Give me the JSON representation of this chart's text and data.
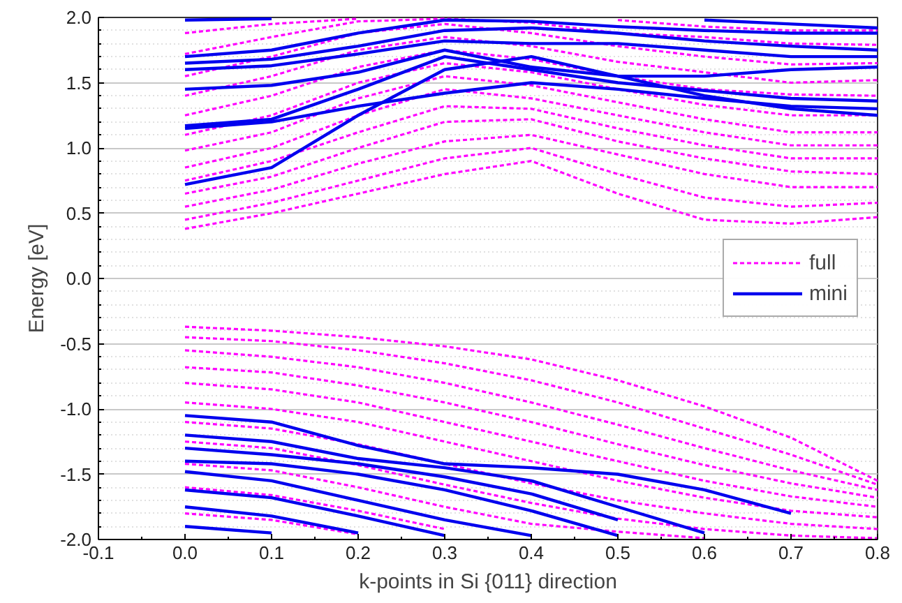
{
  "chart_data": {
    "type": "line",
    "xlabel": "k-points in Si {011} direction",
    "ylabel": "Energy [eV]",
    "x": [
      0.0,
      0.1,
      0.2,
      0.3,
      0.4,
      0.5,
      0.6,
      0.7,
      0.8
    ],
    "xlim": [
      -0.1,
      0.8
    ],
    "ylim": [
      -2.0,
      2.0
    ],
    "xticks": [
      {
        "value": -0.1,
        "label": "-0.1"
      },
      {
        "value": 0,
        "label": "0.0"
      },
      0.1,
      0.2,
      0.3,
      0.4,
      0.5,
      0.6,
      0.7,
      0.8
    ],
    "yticks": [
      {
        "value": -2,
        "label": "-2.0"
      },
      -1.5,
      {
        "value": -1,
        "label": "-1.0"
      },
      -0.5,
      {
        "value": 0,
        "label": "0.0"
      },
      0.5,
      {
        "value": 1,
        "label": "1.0"
      },
      1.5,
      {
        "value": 2,
        "label": "2.0"
      }
    ],
    "grid": "y",
    "legend": "right",
    "marker": "none",
    "series": [
      {
        "name": "full",
        "color": "#ff00ff",
        "line_style": "dashed",
        "values": [
          0.38,
          0.5,
          0.65,
          0.8,
          0.9,
          0.65,
          0.45,
          0.42,
          0.47
        ]
      },
      {
        "color": "#ff00ff",
        "line_style": "dashed",
        "values": [
          0.45,
          0.58,
          0.75,
          0.92,
          1.0,
          0.8,
          0.62,
          0.55,
          0.58
        ]
      },
      {
        "color": "#ff00ff",
        "line_style": "dashed",
        "values": [
          0.55,
          0.68,
          0.88,
          1.05,
          1.1,
          0.95,
          0.8,
          0.7,
          0.7
        ]
      },
      {
        "color": "#ff00ff",
        "line_style": "dashed",
        "values": [
          0.65,
          0.78,
          1.0,
          1.2,
          1.22,
          1.05,
          0.92,
          0.82,
          0.8
        ]
      },
      {
        "color": "#ff00ff",
        "line_style": "dashed",
        "values": [
          0.75,
          0.9,
          1.12,
          1.32,
          1.3,
          1.15,
          1.02,
          0.92,
          0.92
        ]
      },
      {
        "color": "#ff00ff",
        "line_style": "dashed",
        "values": [
          0.85,
          1.0,
          1.25,
          1.45,
          1.38,
          1.25,
          1.12,
          1.02,
          1.02
        ]
      },
      {
        "color": "#ff00ff",
        "line_style": "dashed",
        "values": [
          0.98,
          1.12,
          1.38,
          1.55,
          1.48,
          1.35,
          1.22,
          1.12,
          1.12
        ]
      },
      {
        "color": "#ff00ff",
        "line_style": "dashed",
        "values": [
          1.1,
          1.25,
          1.5,
          1.65,
          1.58,
          1.45,
          1.33,
          1.25,
          1.25
        ]
      },
      {
        "color": "#ff00ff",
        "line_style": "dashed",
        "values": [
          1.25,
          1.4,
          1.62,
          1.75,
          1.68,
          1.55,
          1.45,
          1.41,
          1.4
        ]
      },
      {
        "color": "#ff00ff",
        "line_style": "dashed",
        "values": [
          1.4,
          1.55,
          1.75,
          1.85,
          1.78,
          1.66,
          1.58,
          1.5,
          1.52
        ]
      },
      {
        "color": "#ff00ff",
        "line_style": "dashed",
        "values": [
          1.55,
          1.7,
          1.88,
          1.95,
          1.88,
          1.78,
          1.7,
          1.64,
          1.65
        ]
      },
      {
        "color": "#ff00ff",
        "line_style": "dashed",
        "values": [
          1.72,
          1.85,
          1.97,
          1.99,
          1.96,
          1.88,
          1.85,
          1.8,
          1.79
        ]
      },
      {
        "color": "#ff00ff",
        "line_style": "dashed",
        "values": [
          1.88,
          1.95,
          1.99,
          null,
          null,
          1.98,
          1.93,
          1.9,
          1.9
        ]
      },
      {
        "color": "#ff00ff",
        "line_style": "dashed",
        "values": [
          -0.37,
          -0.4,
          -0.45,
          -0.52,
          -0.62,
          -0.78,
          -0.98,
          -1.22,
          -1.55
        ]
      },
      {
        "color": "#ff00ff",
        "line_style": "dashed",
        "values": [
          -0.45,
          -0.48,
          -0.55,
          -0.65,
          -0.78,
          -0.95,
          -1.15,
          -1.35,
          -1.58
        ]
      },
      {
        "color": "#ff00ff",
        "line_style": "dashed",
        "values": [
          -0.55,
          -0.6,
          -0.68,
          -0.8,
          -0.95,
          -1.12,
          -1.3,
          -1.47,
          -1.62
        ]
      },
      {
        "color": "#ff00ff",
        "line_style": "dashed",
        "values": [
          -0.68,
          -0.72,
          -0.82,
          -0.95,
          -1.1,
          -1.27,
          -1.43,
          -1.57,
          -1.68
        ]
      },
      {
        "color": "#ff00ff",
        "line_style": "dashed",
        "values": [
          -0.8,
          -0.85,
          -0.95,
          -1.1,
          -1.25,
          -1.4,
          -1.55,
          -1.67,
          -1.75
        ]
      },
      {
        "color": "#ff00ff",
        "line_style": "dashed",
        "values": [
          -0.95,
          -1.0,
          -1.1,
          -1.25,
          -1.4,
          -1.55,
          -1.68,
          -1.78,
          -1.83
        ]
      },
      {
        "color": "#ff00ff",
        "line_style": "dashed",
        "values": [
          -1.1,
          -1.15,
          -1.27,
          -1.42,
          -1.57,
          -1.7,
          -1.8,
          -1.88,
          -1.92
        ]
      },
      {
        "color": "#ff00ff",
        "line_style": "dashed",
        "values": [
          -1.25,
          -1.3,
          -1.43,
          -1.58,
          -1.72,
          -1.84,
          -1.92,
          -1.97,
          -1.99
        ]
      },
      {
        "color": "#ff00ff",
        "line_style": "dashed",
        "values": [
          -1.42,
          -1.47,
          -1.6,
          -1.75,
          -1.88,
          -1.94,
          -1.99,
          null,
          null
        ]
      },
      {
        "color": "#ff00ff",
        "line_style": "dashed",
        "values": [
          -1.6,
          -1.66,
          -1.78,
          -1.92,
          null,
          null,
          null,
          null,
          null
        ]
      },
      {
        "color": "#ff00ff",
        "line_style": "dashed",
        "values": [
          -1.8,
          -1.85,
          -1.96,
          null,
          null,
          null,
          null,
          null,
          null
        ]
      },
      {
        "name": "mini",
        "color": "#0000ee",
        "line_style": "solid",
        "values": [
          0.72,
          0.85,
          1.25,
          1.6,
          1.7,
          1.55,
          1.4,
          1.3,
          1.25
        ]
      },
      {
        "color": "#0000ee",
        "line_style": "solid",
        "values": [
          1.15,
          1.2,
          1.32,
          1.42,
          1.5,
          1.45,
          1.38,
          1.32,
          1.3
        ]
      },
      {
        "color": "#0000ee",
        "line_style": "solid",
        "values": [
          1.17,
          1.22,
          1.45,
          1.7,
          1.6,
          1.5,
          1.44,
          1.38,
          1.36
        ]
      },
      {
        "color": "#0000ee",
        "line_style": "solid",
        "values": [
          1.45,
          1.48,
          1.58,
          1.75,
          1.62,
          1.55,
          1.55,
          1.6,
          1.62
        ]
      },
      {
        "color": "#0000ee",
        "line_style": "solid",
        "values": [
          1.6,
          1.63,
          1.72,
          1.82,
          1.8,
          1.8,
          1.75,
          1.7,
          1.7
        ]
      },
      {
        "color": "#0000ee",
        "line_style": "solid",
        "values": [
          1.65,
          1.68,
          1.78,
          1.9,
          1.92,
          1.88,
          1.82,
          1.78,
          1.75
        ]
      },
      {
        "color": "#0000ee",
        "line_style": "solid",
        "values": [
          1.7,
          1.75,
          1.88,
          1.98,
          1.97,
          1.93,
          1.9,
          1.88,
          1.88
        ]
      },
      {
        "color": "#0000ee",
        "line_style": "solid",
        "values": [
          1.98,
          1.99,
          null,
          null,
          null,
          null,
          1.98,
          1.95,
          1.92
        ]
      },
      {
        "color": "#0000ee",
        "line_style": "solid",
        "values": [
          -1.05,
          -1.1,
          -1.28,
          -1.42,
          -1.45,
          -1.5,
          -1.62,
          -1.8,
          null
        ]
      },
      {
        "color": "#0000ee",
        "line_style": "solid",
        "values": [
          -1.2,
          -1.25,
          -1.38,
          -1.45,
          -1.55,
          -1.75,
          -1.95,
          null,
          null
        ]
      },
      {
        "color": "#0000ee",
        "line_style": "solid",
        "values": [
          -1.3,
          -1.35,
          -1.42,
          -1.52,
          -1.65,
          -1.85,
          null,
          null,
          null
        ]
      },
      {
        "color": "#0000ee",
        "line_style": "solid",
        "values": [
          -1.4,
          -1.42,
          -1.5,
          -1.62,
          -1.78,
          -1.97,
          null,
          null,
          null
        ]
      },
      {
        "color": "#0000ee",
        "line_style": "solid",
        "values": [
          -1.48,
          -1.55,
          -1.7,
          -1.85,
          -1.97,
          null,
          null,
          null,
          null
        ]
      },
      {
        "color": "#0000ee",
        "line_style": "solid",
        "values": [
          -1.62,
          -1.68,
          -1.82,
          -1.97,
          null,
          null,
          null,
          null,
          null
        ]
      },
      {
        "color": "#0000ee",
        "line_style": "solid",
        "values": [
          -1.75,
          -1.82,
          -1.95,
          null,
          null,
          null,
          null,
          null,
          null
        ]
      },
      {
        "color": "#0000ee",
        "line_style": "solid",
        "values": [
          -1.9,
          -1.95,
          null,
          null,
          null,
          null,
          null,
          null,
          null
        ]
      }
    ]
  }
}
